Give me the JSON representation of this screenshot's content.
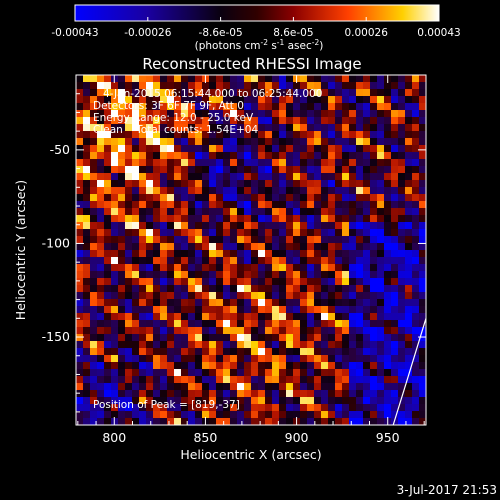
{
  "chart_data": {
    "type": "heatmap",
    "title": "Reconstructed RHESSI Image",
    "xlabel": "Heliocentric X (arcsec)",
    "ylabel": "Heliocentric Y (arcsec)",
    "xlim": [
      779,
      971
    ],
    "ylim": [
      -197,
      -10
    ],
    "x_ticks": [
      800,
      850,
      900,
      950
    ],
    "y_ticks": [
      -50,
      -100,
      -150
    ],
    "colorbar": {
      "label": "(photons cm",
      "label_sup1": "-2",
      "label_mid": " s",
      "label_sup2": "-1",
      "label_mid2": " asec",
      "label_sup3": "-2",
      "label_end": ")",
      "ticks": [
        "-0.00043",
        "-0.00026",
        "-8.6e-05",
        "8.6e-05",
        "0.00026",
        "0.00043"
      ],
      "range": [
        -0.00043,
        0.00043
      ],
      "colormap": "blue-black-red-yellow-white"
    },
    "annotations": [
      "4-Jan-2015 06:15:44.000 to 06:25:44.000",
      "Detectors: 3F 6F 7F 9F, Att 0",
      "Energy Range: 12.0 - 25.0 keV",
      "Clean    Total counts: 1.54E+04"
    ],
    "peak_label": "Position of Peak = [819,-37]",
    "peak": [
      819,
      -37
    ],
    "limb": [
      [
        971,
        -140
      ],
      [
        960,
        -175
      ],
      [
        953,
        -197
      ]
    ],
    "grid": false
  },
  "footer": {
    "timestamp": "3-Jul-2017 21:53"
  },
  "colors": {
    "background": "#000000",
    "text": "#ffffff"
  }
}
